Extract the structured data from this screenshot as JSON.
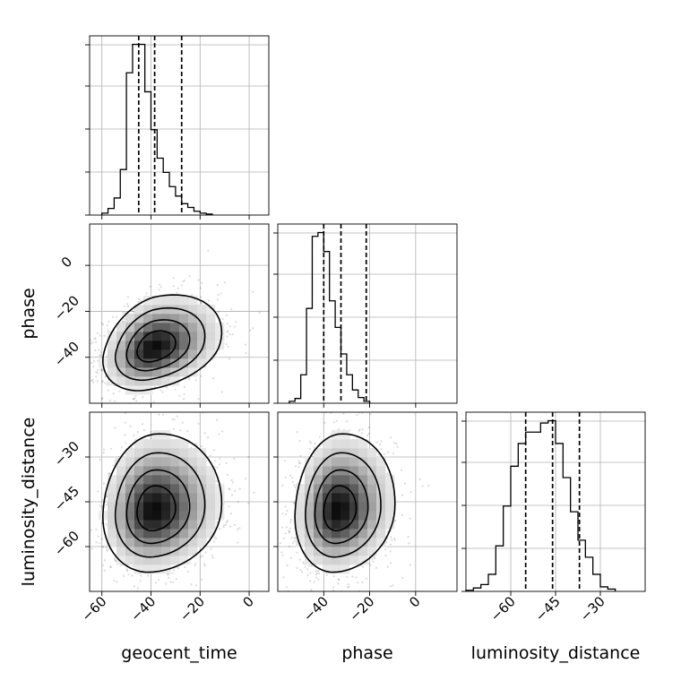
{
  "chart_data": {
    "type": "corner",
    "parameters": [
      "geocent_time",
      "phase",
      "luminosity_distance"
    ],
    "axis_labels": [
      "geocent_time",
      "phase",
      "luminosity_distance"
    ],
    "grid": true,
    "ranges": {
      "geocent_time": [
        -65,
        8
      ],
      "phase": [
        -60,
        18
      ],
      "luminosity_distance": [
        -75,
        -15
      ]
    },
    "x_ticks": {
      "geocent_time": [
        "−60",
        "−40",
        "−20",
        "0"
      ],
      "phase": [
        "−40",
        "−20",
        "0"
      ],
      "luminosity_distance": [
        "−60",
        "−45",
        "−30"
      ]
    },
    "x_tick_values": {
      "geocent_time": [
        -60,
        -40,
        -20,
        0
      ],
      "phase": [
        -40,
        -20,
        0
      ],
      "luminosity_distance": [
        -60,
        -45,
        -30
      ]
    },
    "y_ticks": {
      "phase": [
        "0",
        "−20",
        "−40"
      ],
      "luminosity_distance": [
        "−30",
        "−45",
        "−60"
      ]
    },
    "y_tick_values": {
      "phase": [
        0,
        -20,
        -40
      ],
      "luminosity_distance": [
        -30,
        -45,
        -60
      ]
    },
    "quantiles": {
      "geocent_time": [
        -45,
        -38.5,
        -27.5
      ],
      "phase": [
        -40,
        -32.5,
        -21.5
      ],
      "luminosity_distance": [
        -55,
        -46,
        -37
      ]
    },
    "histograms": {
      "geocent_time": {
        "bin_start": -60,
        "bin_width": 2.5,
        "counts": [
          2,
          7,
          18,
          48,
          150,
          180,
          180,
          130,
          90,
          60,
          45,
          30,
          20,
          12,
          8,
          4,
          2,
          1
        ]
      },
      "phase": {
        "bin_start": -55,
        "bin_width": 2.5,
        "counts": [
          2,
          5,
          30,
          100,
          176,
          180,
          160,
          108,
          80,
          52,
          30,
          14,
          6,
          2
        ]
      },
      "luminosity_distance": {
        "bin_start": -75,
        "bin_width": 2.5,
        "counts": [
          1,
          3,
          6,
          15,
          40,
          75,
          110,
          130,
          140,
          140,
          148,
          150,
          130,
          100,
          70,
          45,
          30,
          15,
          4,
          2
        ]
      }
    },
    "posterior_2d": {
      "phase|geocent_time": {
        "peak": [
          -39,
          -36
        ],
        "sigma": [
          10,
          9
        ],
        "correlation": 0.3,
        "contour_levels": [
          0.12,
          0.3,
          0.55,
          0.8
        ]
      },
      "luminosity_distance|geocent_time": {
        "peak": [
          -39,
          -48
        ],
        "sigma": [
          10,
          10
        ],
        "correlation": 0.1,
        "contour_levels": [
          0.12,
          0.3,
          0.55,
          0.8
        ]
      },
      "luminosity_distance|phase": {
        "peak": [
          -34,
          -48
        ],
        "sigma": [
          9,
          10
        ],
        "correlation": 0.1,
        "contour_levels": [
          0.12,
          0.3,
          0.55,
          0.8
        ]
      }
    }
  }
}
